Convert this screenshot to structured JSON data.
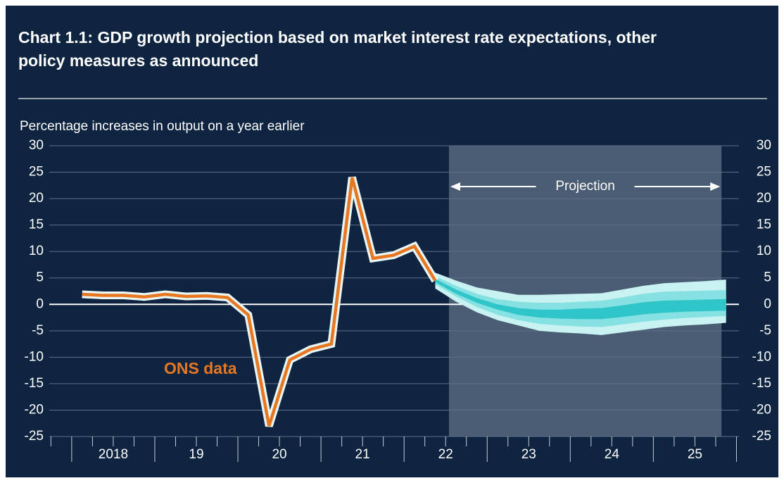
{
  "chart_data": {
    "type": "fan",
    "title": "Chart 1.1: GDP growth projection based on market interest rate expectations, other",
    "title_line2": "policy measures as announced",
    "ylabel": "Percentage increases in output on a year earlier",
    "ylim": [
      -25,
      30
    ],
    "yticks": [
      -25,
      -20,
      -15,
      -10,
      -5,
      0,
      5,
      10,
      15,
      20,
      25,
      30
    ],
    "xlim": [
      2017.73,
      2026.03
    ],
    "xticks": [
      {
        "value": 2018.5,
        "label": "2018"
      },
      {
        "value": 2019.5,
        "label": "19"
      },
      {
        "value": 2020.5,
        "label": "20"
      },
      {
        "value": 2021.5,
        "label": "21"
      },
      {
        "value": 2022.5,
        "label": "22"
      },
      {
        "value": 2023.5,
        "label": "23"
      },
      {
        "value": 2024.5,
        "label": "24"
      },
      {
        "value": 2025.5,
        "label": "25"
      }
    ],
    "grid": true,
    "projection_span": [
      2022.54,
      2025.82
    ],
    "projection_label": "Projection",
    "series": [
      {
        "name": "ONS data",
        "color": "#e87722",
        "x": [
          2018.125,
          2018.375,
          2018.625,
          2018.875,
          2019.125,
          2019.375,
          2019.625,
          2019.875,
          2020.125,
          2020.375,
          2020.625,
          2020.875,
          2021.125,
          2021.375,
          2021.625,
          2021.875,
          2022.125,
          2022.375
        ],
        "values": [
          1.9,
          1.7,
          1.7,
          1.4,
          1.9,
          1.5,
          1.6,
          1.3,
          -2.0,
          -23.0,
          -10.5,
          -8.5,
          -7.5,
          24.0,
          8.7,
          9.3,
          11.0,
          4.5
        ]
      }
    ],
    "projection_x": [
      2022.375,
      2022.625,
      2022.875,
      2023.125,
      2023.375,
      2023.625,
      2023.875,
      2024.125,
      2024.375,
      2024.625,
      2024.875,
      2025.125,
      2025.375,
      2025.625,
      2025.875
    ],
    "bands": [
      {
        "color": "#c9f2f2",
        "upper": [
          6,
          4.5,
          3.2,
          2.5,
          1.8,
          1.8,
          1.9,
          2.0,
          2.1,
          2.8,
          3.5,
          4,
          4.2,
          4.4,
          4.7
        ],
        "lower": [
          3,
          0.5,
          -1.5,
          -3,
          -4,
          -5,
          -5.3,
          -5.5,
          -5.8,
          -5.3,
          -4.8,
          -4.3,
          -4.0,
          -3.8,
          -3.5
        ]
      },
      {
        "color": "#86e2e2",
        "upper": [
          5.3,
          3.5,
          2,
          1,
          0.5,
          0.3,
          0.3,
          0.5,
          0.7,
          1.3,
          2,
          2.4,
          2.5,
          2.6,
          2.7
        ],
        "lower": [
          3.8,
          1.5,
          -0.5,
          -2,
          -3,
          -3.7,
          -4,
          -4.2,
          -4.3,
          -3.8,
          -3.3,
          -2.9,
          -2.6,
          -2.4,
          -2.2
        ]
      },
      {
        "color": "#30c6c9",
        "upper": [
          4.8,
          2.8,
          1.2,
          0,
          -0.7,
          -1,
          -1,
          -0.8,
          -0.7,
          -0.2,
          0.4,
          0.7,
          0.8,
          0.9,
          1.0
        ],
        "lower": [
          4.2,
          2.0,
          0.3,
          -1,
          -2,
          -2.5,
          -2.7,
          -2.8,
          -2.8,
          -2.4,
          -1.9,
          -1.6,
          -1.4,
          -1.3,
          -1.2
        ]
      }
    ]
  }
}
